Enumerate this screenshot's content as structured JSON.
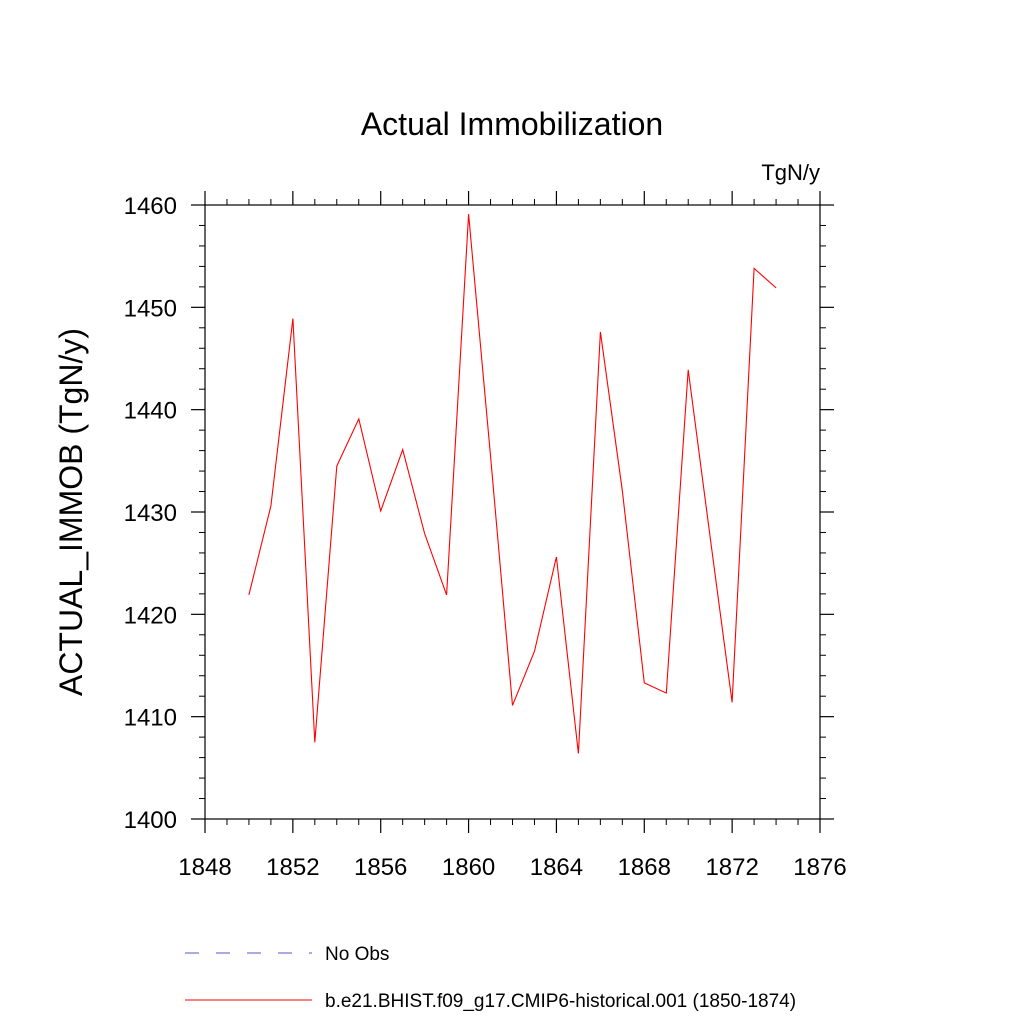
{
  "chart_data": {
    "type": "line",
    "title": "Actual Immobilization",
    "units": "TgN/y",
    "ylabel": "ACTUAL_IMMOB  (TgN/y)",
    "xlabel": "",
    "xlim": [
      1848,
      1876
    ],
    "ylim": [
      1400,
      1460
    ],
    "x_ticks": [
      1848,
      1852,
      1856,
      1860,
      1864,
      1868,
      1872,
      1876
    ],
    "y_ticks": [
      1400,
      1410,
      1420,
      1430,
      1440,
      1450,
      1460
    ],
    "grid": false,
    "series": [
      {
        "name": "b.e21.BHIST.f09_g17.CMIP6-historical.001 (1850-1874)",
        "color": "#ff0000",
        "x": [
          1850,
          1851,
          1852,
          1853,
          1854,
          1855,
          1856,
          1857,
          1858,
          1859,
          1860,
          1861,
          1862,
          1863,
          1864,
          1865,
          1866,
          1867,
          1868,
          1869,
          1870,
          1871,
          1872,
          1873,
          1874
        ],
        "y": [
          1421.9,
          1430.6,
          1448.9,
          1407.5,
          1434.5,
          1439.1,
          1430.1,
          1436.1,
          1427.9,
          1421.9,
          1459.1,
          1435.5,
          1411.1,
          1416.4,
          1425.6,
          1406.4,
          1447.6,
          1432.1,
          1413.3,
          1412.3,
          1443.9,
          1427.5,
          1411.4,
          1453.8,
          1451.9
        ]
      }
    ],
    "legend": [
      {
        "label": "No Obs",
        "color": "#5555cc",
        "style": "dashed"
      },
      {
        "label": "b.e21.BHIST.f09_g17.CMIP6-historical.001 (1850-1874)",
        "color": "#ff0000",
        "style": "solid"
      }
    ],
    "legend_position": "bottom"
  }
}
